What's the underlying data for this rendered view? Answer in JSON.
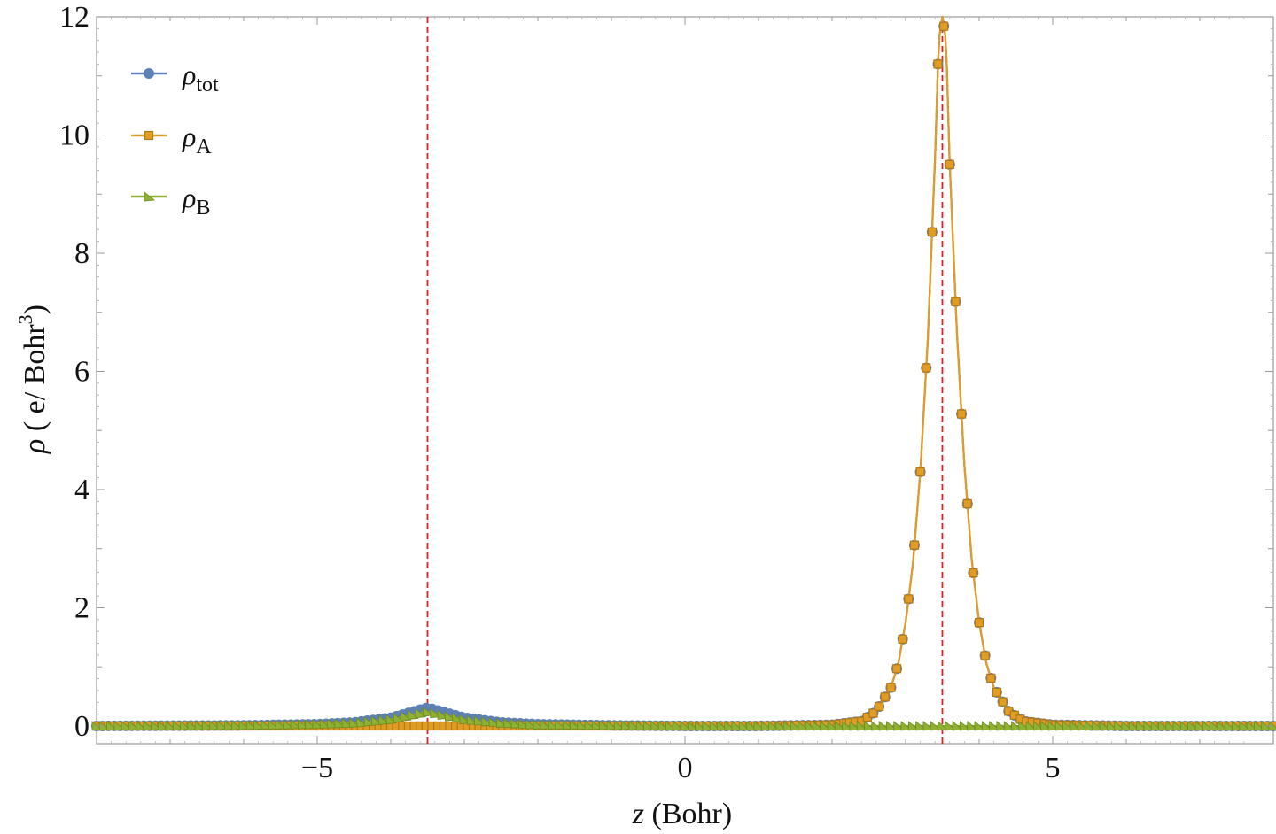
{
  "chart_data": {
    "type": "line",
    "xlabel_var": "z",
    "xlabel_unit": " (Bohr)",
    "ylabel_var": "ρ",
    "ylabel_unit": " ( e/ Bohr",
    "ylabel_sup": "3",
    "ylabel_close": ")",
    "xlim": [
      -8,
      8
    ],
    "ylim": [
      -0.3,
      12
    ],
    "xticks": [
      -5,
      0,
      5
    ],
    "xtick_labels": [
      "−5",
      "0",
      "5"
    ],
    "yticks": [
      0,
      2,
      4,
      6,
      8,
      10,
      12
    ],
    "ytick_labels": [
      "0",
      "2",
      "4",
      "6",
      "8",
      "10",
      "12"
    ],
    "vertical_reference_lines": [
      -3.5,
      3.5
    ],
    "legend": "top-left",
    "series": [
      {
        "name": "ρ",
        "subscript": "tot",
        "marker": "circle",
        "color": "#5E81B5",
        "edge_color": "#5E81B5",
        "points": [
          [
            -8.0,
            0.0
          ],
          [
            -6.0,
            0.01
          ],
          [
            -5.0,
            0.03
          ],
          [
            -4.5,
            0.06
          ],
          [
            -4.0,
            0.14
          ],
          [
            -3.5,
            0.31
          ],
          [
            -3.0,
            0.14
          ],
          [
            -2.5,
            0.06
          ],
          [
            -2.0,
            0.03
          ],
          [
            -1.0,
            0.01
          ],
          [
            0.0,
            0.0
          ],
          [
            1.0,
            0.0
          ],
          [
            2.0,
            0.02
          ],
          [
            2.4,
            0.08
          ],
          [
            2.6,
            0.25
          ],
          [
            2.8,
            0.65
          ],
          [
            2.9,
            1.05
          ],
          [
            3.0,
            1.75
          ],
          [
            3.1,
            2.75
          ],
          [
            3.2,
            4.3
          ],
          [
            3.3,
            6.5
          ],
          [
            3.4,
            9.6
          ],
          [
            3.45,
            11.6
          ],
          [
            3.5,
            12.0
          ],
          [
            3.55,
            11.6
          ],
          [
            3.6,
            9.5
          ],
          [
            3.7,
            6.6
          ],
          [
            3.8,
            4.4
          ],
          [
            3.9,
            2.8
          ],
          [
            4.0,
            1.75
          ],
          [
            4.1,
            1.05
          ],
          [
            4.2,
            0.65
          ],
          [
            4.4,
            0.25
          ],
          [
            4.6,
            0.08
          ],
          [
            5.0,
            0.02
          ],
          [
            6.0,
            0.0
          ],
          [
            8.0,
            0.0
          ]
        ]
      },
      {
        "name": "ρ",
        "subscript": "A",
        "marker": "square",
        "color": "#E19C24",
        "edge_color": "#B07A1A",
        "points": [
          [
            -8.0,
            0.0
          ],
          [
            -6.0,
            0.0
          ],
          [
            -5.0,
            0.0
          ],
          [
            -3.5,
            0.0
          ],
          [
            -2.0,
            0.0
          ],
          [
            0.0,
            0.0
          ],
          [
            1.0,
            0.0
          ],
          [
            2.0,
            0.02
          ],
          [
            2.4,
            0.08
          ],
          [
            2.6,
            0.25
          ],
          [
            2.8,
            0.65
          ],
          [
            2.9,
            1.05
          ],
          [
            3.0,
            1.75
          ],
          [
            3.1,
            2.75
          ],
          [
            3.2,
            4.3
          ],
          [
            3.3,
            6.5
          ],
          [
            3.4,
            9.6
          ],
          [
            3.45,
            11.6
          ],
          [
            3.5,
            12.0
          ],
          [
            3.55,
            11.6
          ],
          [
            3.6,
            9.5
          ],
          [
            3.7,
            6.6
          ],
          [
            3.8,
            4.4
          ],
          [
            3.9,
            2.8
          ],
          [
            4.0,
            1.75
          ],
          [
            4.1,
            1.05
          ],
          [
            4.2,
            0.65
          ],
          [
            4.4,
            0.25
          ],
          [
            4.6,
            0.08
          ],
          [
            5.0,
            0.02
          ],
          [
            6.0,
            0.0
          ],
          [
            8.0,
            0.0
          ]
        ]
      },
      {
        "name": "ρ",
        "subscript": "B",
        "marker": "triangle",
        "color": "#8FB032",
        "edge_color": "#6E8A22",
        "points": [
          [
            -8.0,
            0.0
          ],
          [
            -6.0,
            0.01
          ],
          [
            -5.0,
            0.03
          ],
          [
            -4.5,
            0.05
          ],
          [
            -4.0,
            0.11
          ],
          [
            -3.5,
            0.24
          ],
          [
            -3.0,
            0.11
          ],
          [
            -2.5,
            0.05
          ],
          [
            -2.0,
            0.02
          ],
          [
            -1.0,
            0.01
          ],
          [
            0.0,
            0.0
          ],
          [
            2.0,
            0.0
          ],
          [
            3.5,
            0.0
          ],
          [
            5.0,
            0.0
          ],
          [
            8.0,
            0.0
          ]
        ]
      }
    ]
  }
}
